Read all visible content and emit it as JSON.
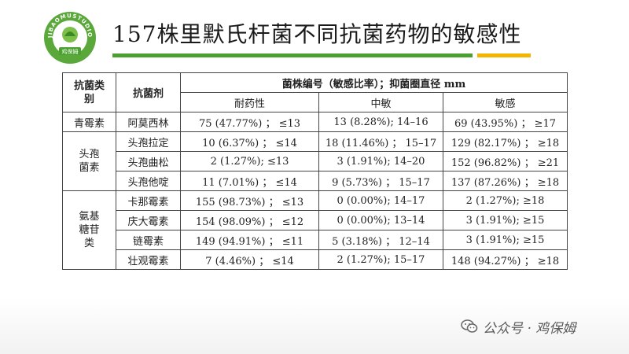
{
  "logo": {
    "ring_text": "JIBAOMUSTUDIO",
    "brand_text": "鸡保姆",
    "colors": {
      "ring": "#5aa83a",
      "inner": "#ffffff"
    }
  },
  "title": "157株里默氏杆菌不同抗菌药物的敏感性",
  "colors": {
    "accent_green": "#4aa12f",
    "accent_yellow": "#f2b500"
  },
  "table": {
    "header": {
      "category": "抗菌类别",
      "drug": "抗菌剂",
      "group": "菌株编号（敏感比率）；抑菌圈直径 mm",
      "resistant": "耐药性",
      "intermediate": "中敏",
      "sensitive": "敏感"
    },
    "groups": [
      {
        "category": "青霉素",
        "rows": [
          {
            "drug": "阿莫西林",
            "resistant": "75 (47.77%) ； ≤13",
            "intermediate": "13 (8.28%); 14–16",
            "sensitive": "69 (43.95%) ； ≥17"
          }
        ]
      },
      {
        "category": "头孢菌素",
        "rows": [
          {
            "drug": "头孢拉定",
            "resistant": "10 (6.37%) ； ≤14",
            "intermediate": "18 (11.46%) ； 15–17",
            "sensitive": "129 (82.17%) ； ≥18"
          },
          {
            "drug": "头孢曲松",
            "resistant": "2 (1.27%); ≤13",
            "intermediate": "3 (1.91%); 14–20",
            "sensitive": "152 (96.82%) ； ≥21"
          },
          {
            "drug": "头孢他啶",
            "resistant": "11 (7.01%) ； ≤14",
            "intermediate": "9 (5.73%) ； 15–17",
            "sensitive": "137 (87.26%) ； ≥18"
          }
        ]
      },
      {
        "category": "氨基糖苷类",
        "rows": [
          {
            "drug": "卡那霉素",
            "resistant": "155 (98.73%) ； ≤13",
            "intermediate": "0 (0.00%); 14–17",
            "sensitive": "2 (1.27%); ≥18"
          },
          {
            "drug": "庆大霉素",
            "resistant": "154 (98.09%) ； ≤12",
            "intermediate": "0 (0.00%); 13–14",
            "sensitive": "3 (1.91%); ≥15"
          },
          {
            "drug": "链霉素",
            "resistant": "149 (94.91%) ； ≤11",
            "intermediate": "5 (3.18%) ； 12–14",
            "sensitive": "3 (1.91%); ≥15"
          },
          {
            "drug": "壮观霉素",
            "resistant": "7 (4.46%) ； ≤14",
            "intermediate": "2 (1.27%); 15–17",
            "sensitive": "148 (94.27%) ； ≥18"
          }
        ]
      }
    ]
  },
  "watermark": {
    "icon": "wechat-icon",
    "text": "公众号 · 鸡保姆"
  }
}
